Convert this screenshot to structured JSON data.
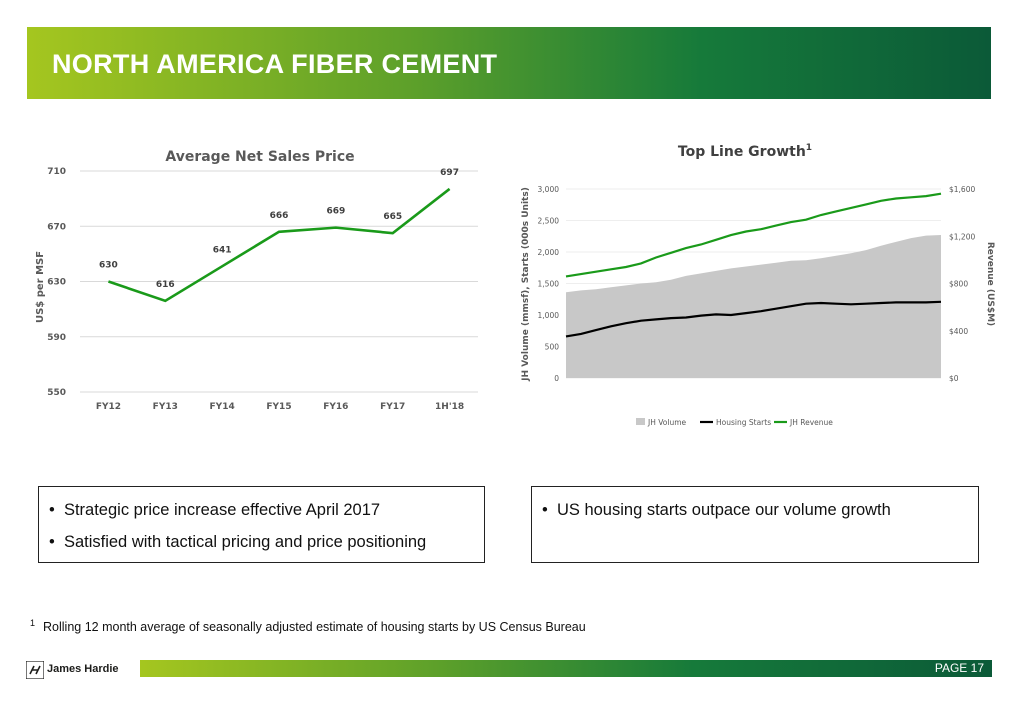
{
  "header": {
    "title": "NORTH AMERICA FIBER CEMENT"
  },
  "chart_data": [
    {
      "type": "line",
      "title": "Average Net Sales Price",
      "ylabel": "US$ per MSF",
      "categories": [
        "FY12",
        "FY13",
        "FY14",
        "FY15",
        "FY16",
        "FY17",
        "1H'18"
      ],
      "values": [
        630,
        616,
        641,
        666,
        669,
        665,
        697
      ],
      "value_labels": [
        "630",
        "616",
        "641",
        "666",
        "669",
        "665",
        "697"
      ],
      "ylim": [
        550,
        710
      ],
      "yticks": [
        550,
        590,
        630,
        670,
        710
      ],
      "ytick_labels": [
        "550",
        "590",
        "630",
        "670",
        "710"
      ],
      "color": "#1a9a1a",
      "grid": true
    },
    {
      "type": "area",
      "title": "Top Line Growth",
      "title_superscript": "1",
      "ylabel_left": "JH Volume (mmsf),  Starts (000s Units)",
      "ylabel_right": "Revenue (US$M)",
      "ylim_left": [
        0,
        3000
      ],
      "yticks_left": [
        "0",
        "500",
        "1,000",
        "1,500",
        "2,000",
        "2,500",
        "3,000"
      ],
      "ylim_right": [
        0,
        1600
      ],
      "yticks_right": [
        "$0",
        "$400",
        "$800",
        "$1,200",
        "$1,600"
      ],
      "series": [
        {
          "name": "JH Volume",
          "axis": "left",
          "style": "area",
          "color": "#c8c8c8",
          "values": [
            1360,
            1390,
            1410,
            1440,
            1470,
            1500,
            1520,
            1560,
            1620,
            1660,
            1700,
            1740,
            1770,
            1800,
            1830,
            1860,
            1870,
            1900,
            1940,
            1980,
            2030,
            2100,
            2160,
            2220,
            2260,
            2270
          ]
        },
        {
          "name": "Housing Starts",
          "axis": "left",
          "style": "line",
          "color": "#000000",
          "values": [
            660,
            700,
            760,
            820,
            870,
            910,
            930,
            950,
            960,
            990,
            1010,
            1000,
            1030,
            1060,
            1100,
            1140,
            1180,
            1190,
            1180,
            1170,
            1180,
            1190,
            1200,
            1200,
            1200,
            1210
          ]
        },
        {
          "name": "JH Revenue",
          "axis": "right",
          "style": "line",
          "color": "#1a9a1a",
          "values": [
            860,
            880,
            900,
            920,
            940,
            970,
            1020,
            1060,
            1100,
            1130,
            1170,
            1210,
            1240,
            1260,
            1290,
            1320,
            1340,
            1380,
            1410,
            1440,
            1470,
            1500,
            1520,
            1530,
            1540,
            1560
          ]
        }
      ],
      "legend": [
        "JH Volume",
        "Housing Starts",
        "JH Revenue"
      ],
      "legend_position": "bottom"
    }
  ],
  "callouts": {
    "left": [
      "Strategic price increase effective April 2017",
      "Satisfied with tactical pricing and price positioning"
    ],
    "right": [
      "US housing starts outpace our volume growth"
    ],
    "bullet_char": "•"
  },
  "footnote": {
    "marker": "1",
    "text": "Rolling 12 month average of seasonally adjusted estimate of housing starts by US Census Bureau"
  },
  "footer": {
    "brand": "James Hardie",
    "page_label": "PAGE  17"
  }
}
